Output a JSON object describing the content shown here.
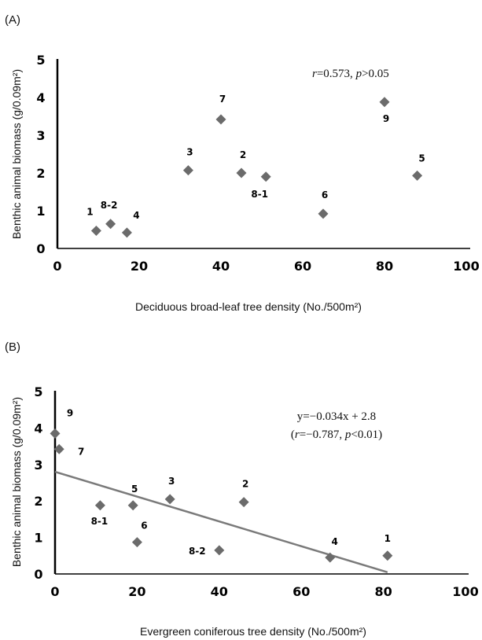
{
  "chart_data": [
    {
      "type": "scatter",
      "panel": "(A)",
      "xlabel": "Deciduous broad-leaf tree density (No./500m²)",
      "ylabel": "Benthic animal biomass (g/0.09m²)",
      "xlim": [
        0,
        100
      ],
      "ylim": [
        0,
        5
      ],
      "xticks": [
        "0",
        "20",
        "40",
        "60",
        "80",
        "100"
      ],
      "yticks": [
        "0",
        "1",
        "2",
        "3",
        "4",
        "5"
      ],
      "annotation": "r=0.573, p>0.05",
      "marker_color": "#6b6b6b",
      "points": [
        {
          "label": "1",
          "x": 9.5,
          "y": 0.47
        },
        {
          "label": "8-2",
          "x": 13,
          "y": 0.65
        },
        {
          "label": "4",
          "x": 17,
          "y": 0.42
        },
        {
          "label": "3",
          "x": 32,
          "y": 2.07
        },
        {
          "label": "7",
          "x": 40,
          "y": 3.42
        },
        {
          "label": "2",
          "x": 45,
          "y": 2.0
        },
        {
          "label": "8-1",
          "x": 51,
          "y": 1.9
        },
        {
          "label": "6",
          "x": 65,
          "y": 0.92
        },
        {
          "label": "9",
          "x": 80,
          "y": 3.88
        },
        {
          "label": "5",
          "x": 88,
          "y": 1.93
        }
      ]
    },
    {
      "type": "scatter",
      "panel": "(B)",
      "xlabel": "Evergreen coniferous tree density (No./500m²)",
      "ylabel": "Benthic animal biomass (g/0.09m²)",
      "xlim": [
        0,
        100
      ],
      "ylim": [
        0,
        5
      ],
      "xticks": [
        "0",
        "20",
        "40",
        "60",
        "80",
        "100"
      ],
      "yticks": [
        "0",
        "1",
        "2",
        "3",
        "4",
        "5"
      ],
      "annotation_line1": "y=−0.034x + 2.8",
      "annotation_line2": "(r=−0.787, p<0.01)",
      "marker_color": "#6b6b6b",
      "trendline": {
        "slope": -0.034,
        "intercept": 2.8,
        "x_range": [
          0,
          81
        ],
        "color": "#7a7a7a"
      },
      "points": [
        {
          "label": "9",
          "x": 0,
          "y": 3.85
        },
        {
          "label": "7",
          "x": 1,
          "y": 3.42
        },
        {
          "label": "8-1",
          "x": 11,
          "y": 1.88
        },
        {
          "label": "5",
          "x": 19,
          "y": 1.88
        },
        {
          "label": "6",
          "x": 20,
          "y": 0.87
        },
        {
          "label": "3",
          "x": 28,
          "y": 2.05
        },
        {
          "label": "8-2",
          "x": 40,
          "y": 0.65
        },
        {
          "label": "2",
          "x": 46,
          "y": 1.97
        },
        {
          "label": "4",
          "x": 67,
          "y": 0.45
        },
        {
          "label": "1",
          "x": 81,
          "y": 0.5
        }
      ]
    }
  ]
}
